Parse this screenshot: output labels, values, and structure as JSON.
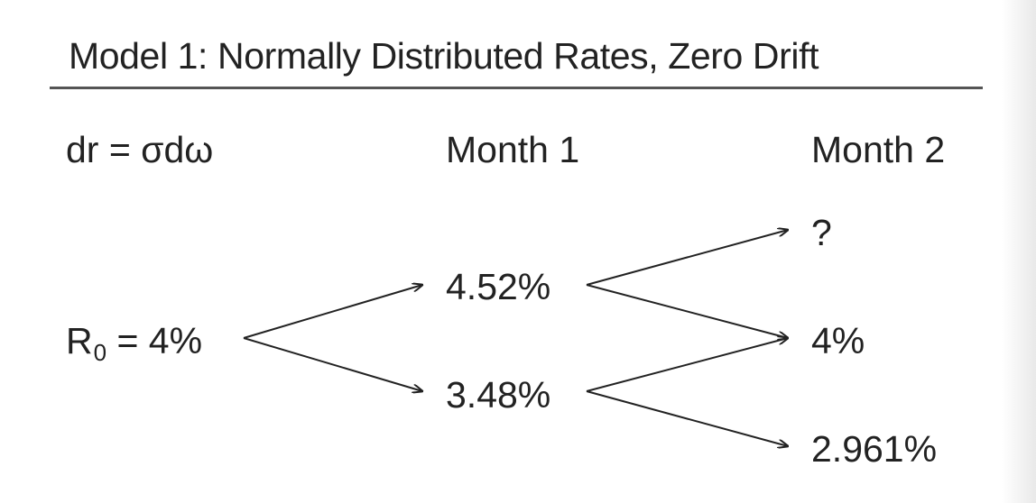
{
  "title": "Model 1: Normally Distributed Rates, Zero Drift",
  "equation": "dr = σdω",
  "columns": {
    "month1": "Month 1",
    "month2": "Month 2"
  },
  "root": {
    "symbol": "R",
    "subscript": "0",
    "value": " = 4%"
  },
  "month1_nodes": {
    "up": "4.52%",
    "down": "3.48%"
  },
  "month2_nodes": {
    "up": "?",
    "middle": "4%",
    "down": "2.961%"
  },
  "colors": {
    "text": "#222222",
    "arrow": "#222222",
    "rule": "#555555",
    "background": "#ffffff"
  }
}
